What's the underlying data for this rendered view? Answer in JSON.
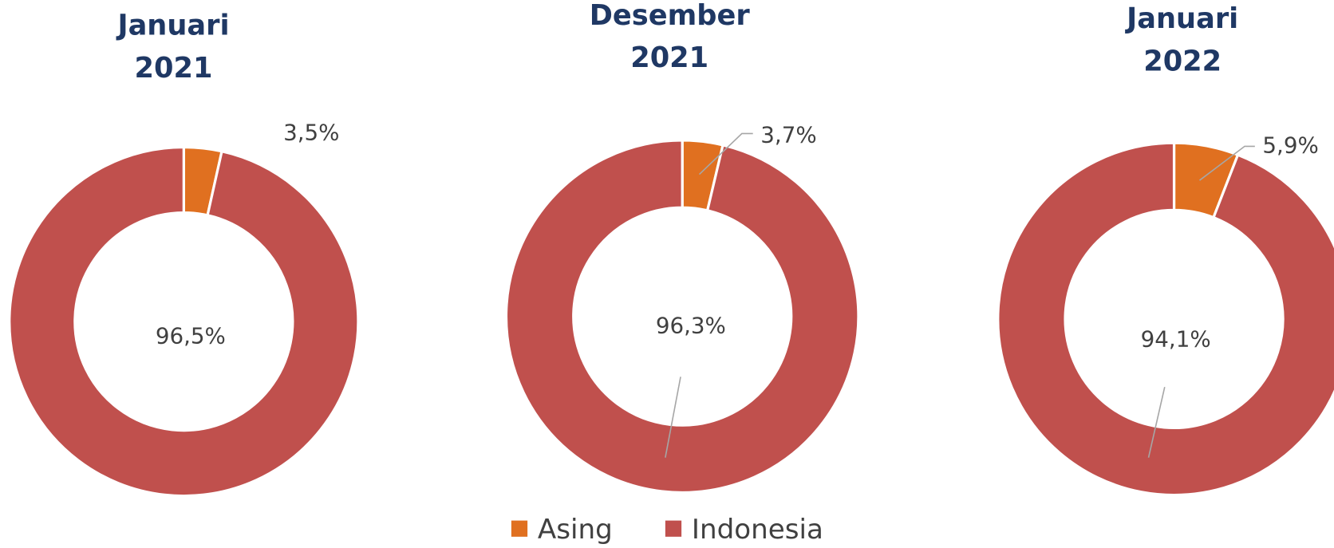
{
  "chart_data": [
    {
      "type": "pie",
      "title": "Januari 2021",
      "categories": [
        "Asing",
        "Indonesia"
      ],
      "values": [
        3.5,
        96.5
      ],
      "value_labels": [
        "3,5%",
        "96,5%"
      ],
      "colors": [
        "#e07020",
        "#c0504d"
      ]
    },
    {
      "type": "pie",
      "title": "Desember 2021",
      "categories": [
        "Asing",
        "Indonesia"
      ],
      "values": [
        3.7,
        96.3
      ],
      "value_labels": [
        "3,7%",
        "96,3%"
      ],
      "colors": [
        "#e07020",
        "#c0504d"
      ]
    },
    {
      "type": "pie",
      "title": "Januari 2022",
      "categories": [
        "Asing",
        "Indonesia"
      ],
      "values": [
        5.9,
        94.1
      ],
      "value_labels": [
        "5,9%",
        "94,1%"
      ],
      "colors": [
        "#e07020",
        "#c0504d"
      ]
    }
  ]
}
